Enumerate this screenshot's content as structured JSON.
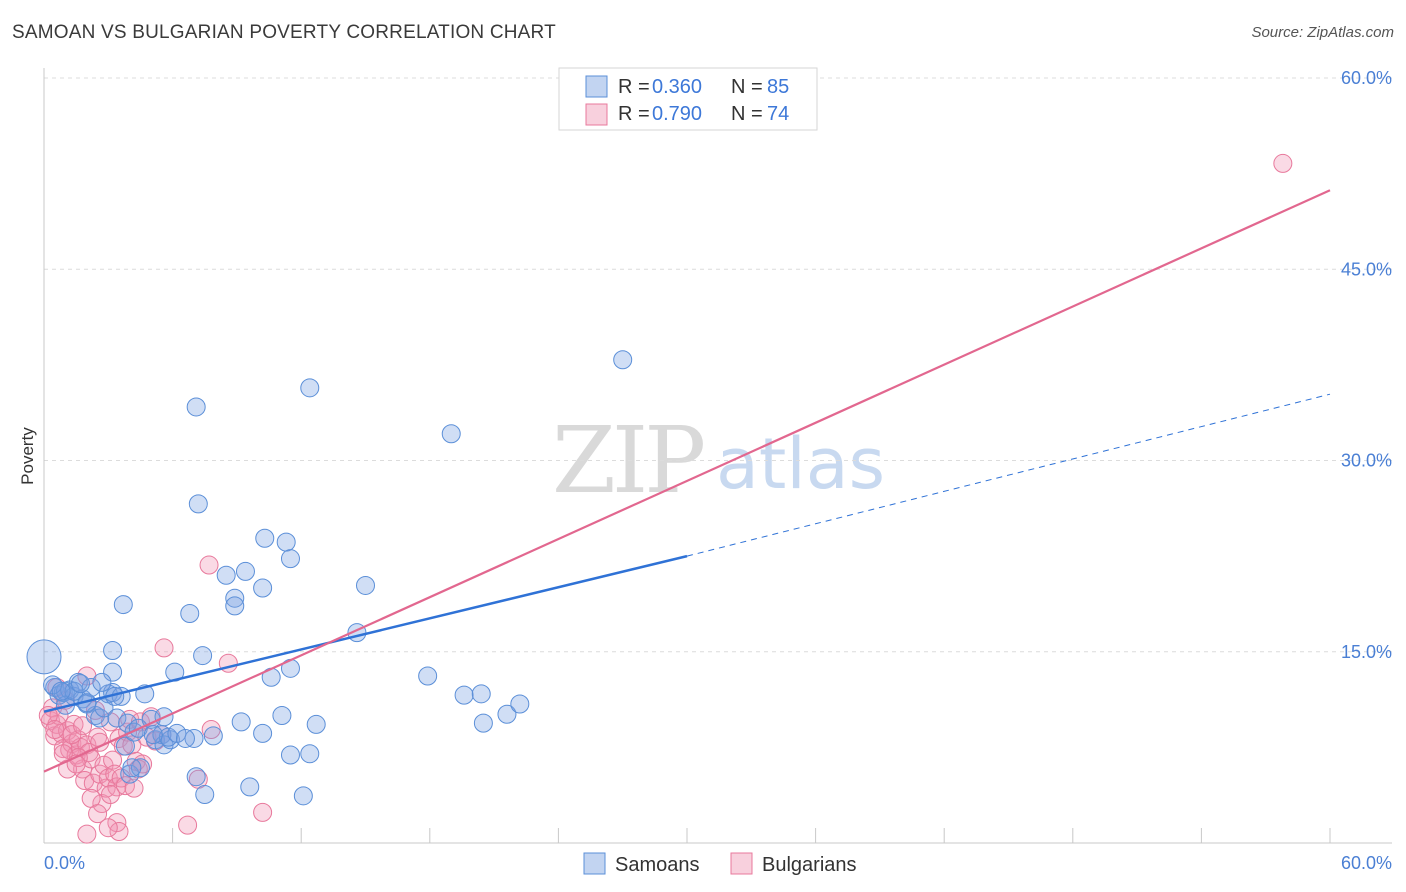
{
  "header": {
    "title": "SAMOAN VS BULGARIAN POVERTY CORRELATION CHART",
    "source": "Source: ZipAtlas.com"
  },
  "watermark": {
    "zip": "ZIP",
    "atlas": "atlas"
  },
  "colors": {
    "samoans": "#5b8fd8",
    "samoans_fill": "rgba(120,160,225,0.35)",
    "bulgarians": "#e8799c",
    "bulgarians_fill": "rgba(240,150,180,0.35)",
    "samoans_line": "#2f72d6",
    "bulgarians_line": "#e2678f",
    "grid": "#dcdcdc"
  },
  "legend": {
    "rows": [
      {
        "r_label": "R = ",
        "r_value": "0.360",
        "n_label": "N = ",
        "n_value": "85"
      },
      {
        "r_label": "R = ",
        "r_value": "0.790",
        "n_label": "N = ",
        "n_value": "74"
      }
    ]
  },
  "bottom_legend": {
    "samoans": "Samoans",
    "bulgarians": "Bulgarians"
  },
  "chart_data": {
    "type": "scatter",
    "title": "SAMOAN VS BULGARIAN POVERTY CORRELATION CHART",
    "xlabel": "",
    "ylabel": "Poverty",
    "xlim": [
      0,
      60
    ],
    "ylim": [
      0,
      60
    ],
    "x_tick_labels": [
      "0.0%",
      "60.0%"
    ],
    "y_ticks": [
      15,
      30,
      45,
      60
    ],
    "y_tick_labels": [
      "15.0%",
      "30.0%",
      "45.0%",
      "60.0%"
    ],
    "series": [
      {
        "name": "Samoans",
        "r": 0.36,
        "n": 85,
        "trend": {
          "x0": 0,
          "y0": 10.3,
          "x1": 30,
          "y1": 22.5,
          "dashed_to_x": 60,
          "dashed_to_y": 35.2
        },
        "points": [
          [
            0.0,
            14.6
          ],
          [
            0.5,
            12.2
          ],
          [
            0.7,
            11.6
          ],
          [
            0.9,
            11.8
          ],
          [
            1.0,
            11.9
          ],
          [
            1.2,
            12.0
          ],
          [
            1.4,
            11.5
          ],
          [
            1.6,
            12.6
          ],
          [
            1.8,
            11.3
          ],
          [
            2.0,
            10.9
          ],
          [
            2.2,
            12.2
          ],
          [
            2.4,
            10.0
          ],
          [
            2.6,
            9.8
          ],
          [
            2.8,
            10.6
          ],
          [
            3.0,
            11.7
          ],
          [
            3.2,
            11.8
          ],
          [
            3.4,
            9.8
          ],
          [
            3.6,
            11.5
          ],
          [
            3.2,
            13.4
          ],
          [
            3.2,
            15.1
          ],
          [
            3.8,
            7.6
          ],
          [
            3.9,
            9.4
          ],
          [
            4.0,
            5.4
          ],
          [
            4.2,
            8.7
          ],
          [
            4.5,
            5.9
          ],
          [
            3.7,
            18.7
          ],
          [
            4.4,
            9.0
          ],
          [
            5.0,
            9.7
          ],
          [
            4.7,
            11.7
          ],
          [
            5.2,
            8.1
          ],
          [
            5.5,
            8.5
          ],
          [
            5.6,
            7.7
          ],
          [
            5.9,
            8.1
          ],
          [
            5.6,
            9.9
          ],
          [
            5.8,
            8.3
          ],
          [
            6.2,
            8.6
          ],
          [
            6.1,
            13.4
          ],
          [
            6.8,
            18.0
          ],
          [
            7.0,
            8.2
          ],
          [
            7.1,
            5.2
          ],
          [
            7.4,
            14.7
          ],
          [
            7.5,
            3.8
          ],
          [
            7.9,
            8.4
          ],
          [
            7.2,
            26.6
          ],
          [
            7.1,
            34.2
          ],
          [
            8.5,
            21.0
          ],
          [
            8.9,
            19.2
          ],
          [
            8.9,
            18.6
          ],
          [
            9.4,
            21.3
          ],
          [
            9.2,
            9.5
          ],
          [
            9.6,
            4.4
          ],
          [
            10.3,
            23.9
          ],
          [
            10.2,
            8.6
          ],
          [
            10.2,
            20.0
          ],
          [
            10.6,
            13.0
          ],
          [
            11.1,
            10.0
          ],
          [
            11.3,
            23.6
          ],
          [
            11.5,
            13.7
          ],
          [
            11.5,
            22.3
          ],
          [
            11.5,
            6.9
          ],
          [
            12.4,
            7.0
          ],
          [
            12.1,
            3.7
          ],
          [
            12.4,
            35.7
          ],
          [
            12.7,
            9.3
          ],
          [
            14.6,
            16.5
          ],
          [
            15.0,
            20.2
          ],
          [
            17.9,
            13.1
          ],
          [
            19.0,
            32.1
          ],
          [
            19.6,
            11.6
          ],
          [
            20.4,
            11.7
          ],
          [
            20.5,
            9.4
          ],
          [
            21.6,
            10.1
          ],
          [
            22.2,
            10.9
          ],
          [
            27.0,
            37.9
          ],
          [
            1.0,
            10.8
          ],
          [
            1.4,
            11.9
          ],
          [
            2.0,
            11.0
          ],
          [
            0.4,
            12.4
          ],
          [
            1.7,
            12.5
          ],
          [
            5.1,
            8.5
          ],
          [
            6.6,
            8.2
          ],
          [
            2.7,
            12.6
          ],
          [
            4.1,
            5.9
          ],
          [
            0.8,
            11.9
          ],
          [
            3.3,
            11.5
          ]
        ]
      },
      {
        "name": "Bulgarians",
        "r": 0.79,
        "n": 74,
        "trend": {
          "x0": 0,
          "y0": 5.6,
          "x1": 60,
          "y1": 51.2
        },
        "points": [
          [
            0.3,
            9.6
          ],
          [
            0.4,
            10.6
          ],
          [
            0.5,
            8.4
          ],
          [
            0.6,
            9.3
          ],
          [
            0.7,
            10.0
          ],
          [
            0.8,
            8.6
          ],
          [
            0.9,
            7.4
          ],
          [
            1.0,
            11.2
          ],
          [
            1.1,
            8.8
          ],
          [
            1.2,
            7.3
          ],
          [
            1.3,
            7.8
          ],
          [
            1.4,
            9.3
          ],
          [
            1.5,
            6.9
          ],
          [
            1.6,
            8.1
          ],
          [
            1.7,
            7.5
          ],
          [
            1.8,
            5.8
          ],
          [
            1.9,
            4.9
          ],
          [
            2.0,
            13.1
          ],
          [
            2.0,
            7.7
          ],
          [
            2.1,
            7.1
          ],
          [
            2.2,
            6.6
          ],
          [
            2.3,
            4.7
          ],
          [
            2.4,
            10.4
          ],
          [
            2.5,
            8.3
          ],
          [
            2.6,
            5.4
          ],
          [
            2.7,
            3.1
          ],
          [
            2.8,
            6.1
          ],
          [
            2.9,
            4.3
          ],
          [
            3.0,
            5.1
          ],
          [
            3.1,
            9.5
          ],
          [
            3.2,
            6.5
          ],
          [
            3.3,
            5.4
          ],
          [
            3.4,
            4.4
          ],
          [
            3.5,
            8.2
          ],
          [
            3.6,
            5.1
          ],
          [
            3.7,
            7.6
          ],
          [
            3.8,
            4.5
          ],
          [
            3.9,
            8.7
          ],
          [
            4.0,
            9.7
          ],
          [
            4.1,
            7.7
          ],
          [
            4.2,
            4.3
          ],
          [
            4.3,
            6.4
          ],
          [
            4.5,
            9.5
          ],
          [
            4.8,
            8.3
          ],
          [
            5.0,
            9.9
          ],
          [
            5.2,
            8.0
          ],
          [
            5.5,
            8.5
          ],
          [
            2.0,
            0.7
          ],
          [
            3.4,
            1.6
          ],
          [
            3.5,
            0.9
          ],
          [
            5.6,
            15.3
          ],
          [
            6.7,
            1.4
          ],
          [
            7.2,
            5.0
          ],
          [
            7.7,
            21.8
          ],
          [
            7.8,
            8.9
          ],
          [
            8.6,
            14.1
          ],
          [
            10.2,
            2.4
          ],
          [
            57.8,
            53.3
          ],
          [
            0.2,
            10.0
          ],
          [
            0.6,
            12.2
          ],
          [
            1.1,
            5.8
          ],
          [
            1.6,
            6.7
          ],
          [
            2.2,
            3.5
          ],
          [
            2.5,
            2.3
          ],
          [
            3.0,
            1.2
          ],
          [
            4.4,
            5.8
          ],
          [
            1.3,
            8.5
          ],
          [
            0.9,
            7.0
          ],
          [
            1.8,
            9.2
          ],
          [
            2.6,
            7.9
          ],
          [
            3.1,
            3.8
          ],
          [
            0.5,
            8.9
          ],
          [
            1.5,
            6.2
          ],
          [
            4.6,
            6.2
          ]
        ]
      }
    ]
  }
}
